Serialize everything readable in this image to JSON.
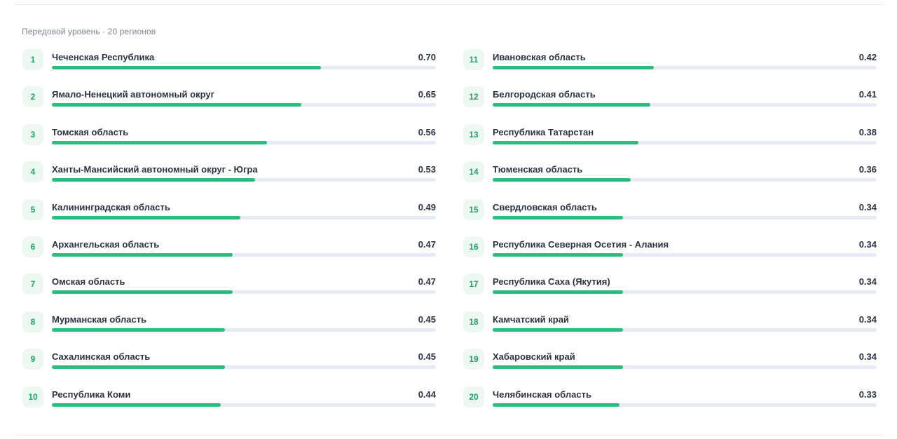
{
  "section": {
    "title": "Передовой уровень · 20 регионов"
  },
  "colors": {
    "bar_fill": "#2dbb80",
    "bar_track": "#e7ebf3",
    "rank_bg": "#eef8f3",
    "rank_text": "#22a06b"
  },
  "regions": [
    {
      "rank": "1",
      "name": "Чеченская Республика",
      "value": "0.70",
      "level": 0.7
    },
    {
      "rank": "2",
      "name": "Ямало-Ненецкий автономный округ",
      "value": "0.65",
      "level": 0.65
    },
    {
      "rank": "3",
      "name": "Томская область",
      "value": "0.56",
      "level": 0.56
    },
    {
      "rank": "4",
      "name": "Ханты-Мансийский автономный округ - Югра",
      "value": "0.53",
      "level": 0.53
    },
    {
      "rank": "5",
      "name": "Калининградская область",
      "value": "0.49",
      "level": 0.49
    },
    {
      "rank": "6",
      "name": "Архангельская область",
      "value": "0.47",
      "level": 0.47
    },
    {
      "rank": "7",
      "name": "Омская область",
      "value": "0.47",
      "level": 0.47
    },
    {
      "rank": "8",
      "name": "Мурманская область",
      "value": "0.45",
      "level": 0.45
    },
    {
      "rank": "9",
      "name": "Сахалинская область",
      "value": "0.45",
      "level": 0.45
    },
    {
      "rank": "10",
      "name": "Республика Коми",
      "value": "0.44",
      "level": 0.44
    },
    {
      "rank": "11",
      "name": "Ивановская область",
      "value": "0.42",
      "level": 0.42
    },
    {
      "rank": "12",
      "name": "Белгородская область",
      "value": "0.41",
      "level": 0.41
    },
    {
      "rank": "13",
      "name": "Республика Татарстан",
      "value": "0.38",
      "level": 0.38
    },
    {
      "rank": "14",
      "name": "Тюменская область",
      "value": "0.36",
      "level": 0.36
    },
    {
      "rank": "15",
      "name": "Свердловская область",
      "value": "0.34",
      "level": 0.34
    },
    {
      "rank": "16",
      "name": "Республика Северная Осетия - Алания",
      "value": "0.34",
      "level": 0.34
    },
    {
      "rank": "17",
      "name": "Республика Саха (Якутия)",
      "value": "0.34",
      "level": 0.34
    },
    {
      "rank": "18",
      "name": "Камчатский край",
      "value": "0.34",
      "level": 0.34
    },
    {
      "rank": "19",
      "name": "Хабаровский край",
      "value": "0.34",
      "level": 0.34
    },
    {
      "rank": "20",
      "name": "Челябинская область",
      "value": "0.33",
      "level": 0.33
    }
  ]
}
